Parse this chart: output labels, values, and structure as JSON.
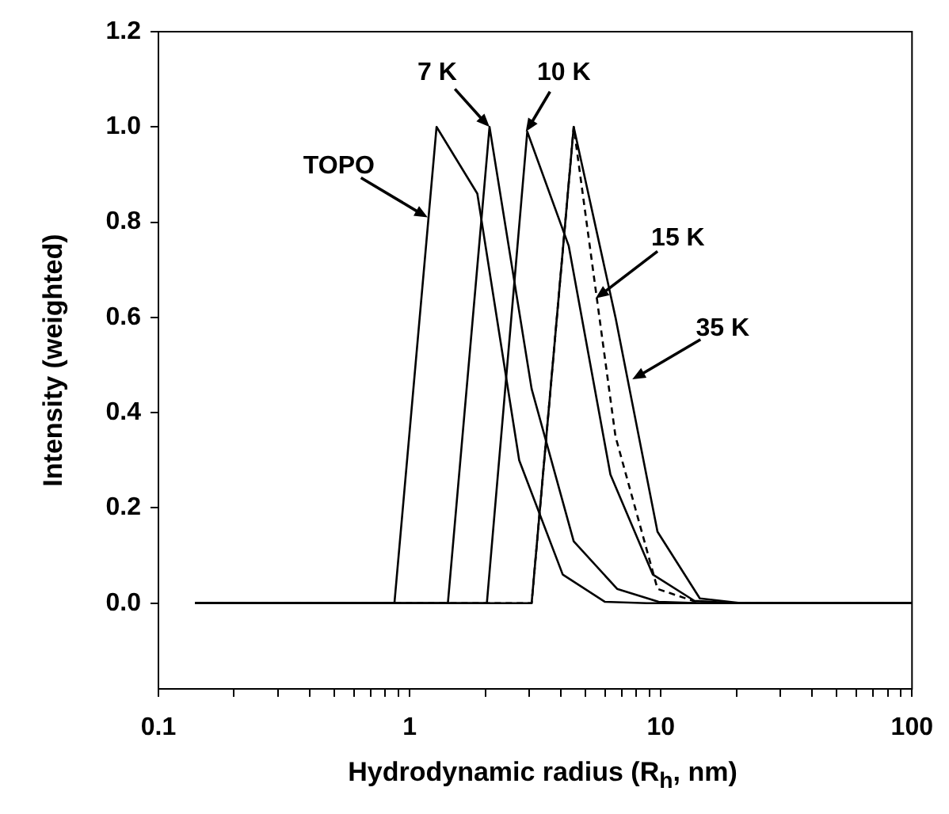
{
  "chart_data": {
    "type": "line",
    "xlabel": "Hydrodynamic radius (R$_{h}$, nm)",
    "ylabel": "Intensity (weighted)",
    "log": "x",
    "xlim": [
      0.1,
      100
    ],
    "ylim": [
      -0.18,
      1.2
    ],
    "xticks": [
      0.1,
      {
        "value": 0.2,
        "label": null
      },
      {
        "value": 0.3,
        "label": null
      },
      {
        "value": 0.4,
        "label": null
      },
      {
        "value": 0.5,
        "label": null
      },
      {
        "value": 0.6,
        "label": null
      },
      {
        "value": 0.7,
        "label": null
      },
      {
        "value": 0.8,
        "label": null
      },
      {
        "value": 0.9,
        "label": null
      },
      1,
      {
        "value": 2,
        "label": null
      },
      {
        "value": 3,
        "label": null
      },
      {
        "value": 4,
        "label": null
      },
      {
        "value": 5,
        "label": null
      },
      {
        "value": 6,
        "label": null
      },
      {
        "value": 7,
        "label": null
      },
      {
        "value": 8,
        "label": null
      },
      {
        "value": 9,
        "label": null
      },
      10,
      {
        "value": 20,
        "label": null
      },
      {
        "value": 30,
        "label": null
      },
      {
        "value": 40,
        "label": null
      },
      {
        "value": 50,
        "label": null
      },
      {
        "value": 60,
        "label": null
      },
      {
        "value": 70,
        "label": null
      },
      {
        "value": 80,
        "label": null
      },
      {
        "value": 90,
        "label": null
      },
      100
    ],
    "yticks": [
      {
        "value": 0,
        "label": "0.0"
      },
      {
        "value": 0.2,
        "label": "0.2"
      },
      {
        "value": 0.4,
        "label": "0.4"
      },
      {
        "value": 0.6,
        "label": "0.6"
      },
      {
        "value": 0.8,
        "label": "0.8"
      },
      {
        "value": 1,
        "label": "1.0"
      },
      {
        "value": 1.2,
        "label": "1.2"
      }
    ],
    "grid": false,
    "legend": false,
    "marker": "none",
    "line_style": "solid",
    "series": [
      {
        "color": "#000000",
        "x": [
          0.14,
          0.87,
          1.28,
          1.86,
          2.73,
          4.07,
          5.98,
          8.8,
          100
        ],
        "values": [
          0,
          0,
          1.0,
          0.86,
          0.3,
          0.06,
          0.003,
          0,
          0
        ]
      },
      {
        "color": "#000000",
        "x": [
          0.14,
          1.42,
          2.08,
          3.06,
          4.5,
          6.7,
          9.8,
          14.4,
          100
        ],
        "values": [
          0,
          0,
          1.0,
          0.45,
          0.13,
          0.03,
          0.003,
          0,
          0
        ]
      },
      {
        "color": "#000000",
        "x": [
          0.14,
          2.03,
          2.94,
          4.3,
          6.3,
          9.3,
          13.6,
          20,
          100
        ],
        "values": [
          0,
          0,
          0.99,
          0.75,
          0.27,
          0.06,
          0.005,
          0,
          0
        ]
      },
      {
        "color": "#000000",
        "line_style": "dashed",
        "x": [
          0.14,
          3.06,
          4.5,
          6.6,
          9.7,
          14.3,
          21,
          100
        ],
        "values": [
          0,
          0,
          1.0,
          0.35,
          0.03,
          0,
          0,
          0
        ]
      },
      {
        "color": "#000000",
        "x": [
          0.14,
          3.06,
          4.5,
          6.6,
          9.7,
          14.3,
          21,
          100
        ],
        "values": [
          0,
          0,
          1.0,
          0.6,
          0.15,
          0.01,
          0,
          0
        ]
      }
    ],
    "annotations": [
      {
        "text": "TOPO",
        "x": 1.18,
        "y": 0.81
      },
      {
        "text": "7 K",
        "x": 2.08,
        "y": 1.0
      },
      {
        "text": "10 K",
        "x": 2.9,
        "y": 0.99
      },
      {
        "text": "15 K",
        "x": 5.5,
        "y": 0.64
      },
      {
        "text": "35 K",
        "x": 7.7,
        "y": 0.47
      }
    ]
  }
}
